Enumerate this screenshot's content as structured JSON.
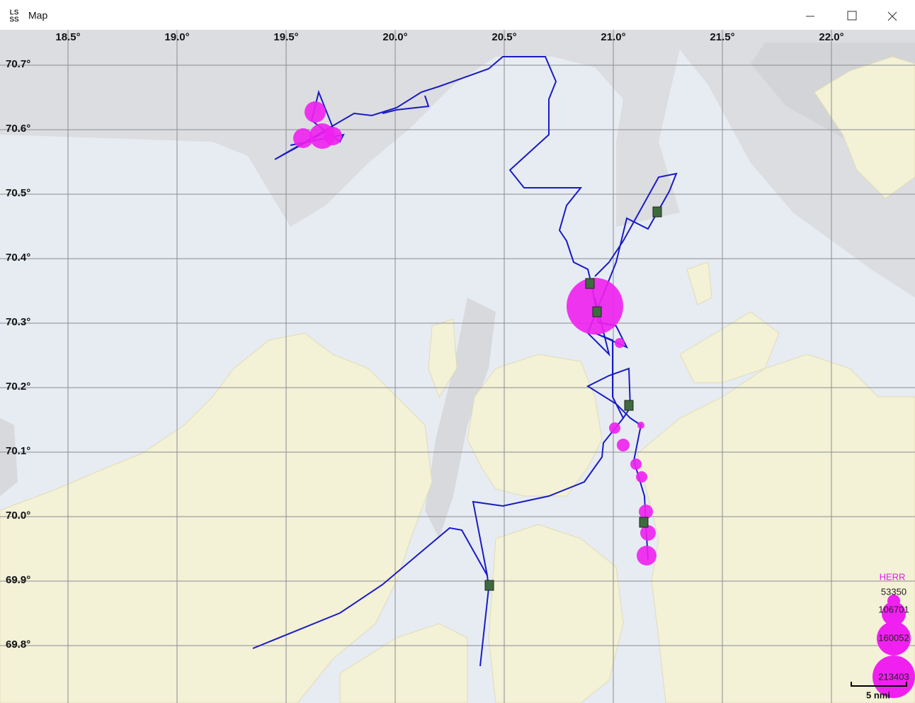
{
  "window": {
    "logo_top": "LS",
    "logo_bottom": "SS",
    "title": "Map"
  },
  "map": {
    "longitude_labels": [
      "18.5°",
      "19.0°",
      "19.5°",
      "20.0°",
      "20.5°",
      "21.0°",
      "21.5°",
      "22.0°"
    ],
    "latitude_labels": [
      "70.7°",
      "70.6°",
      "70.5°",
      "70.4°",
      "70.3°",
      "70.2°",
      "70.1°",
      "70.0°",
      "69.9°",
      "69.8°"
    ],
    "legend": {
      "title": "HERR",
      "values": [
        "53350",
        "106701",
        "160052",
        "213403"
      ]
    },
    "scale_bar": "5 nmi"
  }
}
